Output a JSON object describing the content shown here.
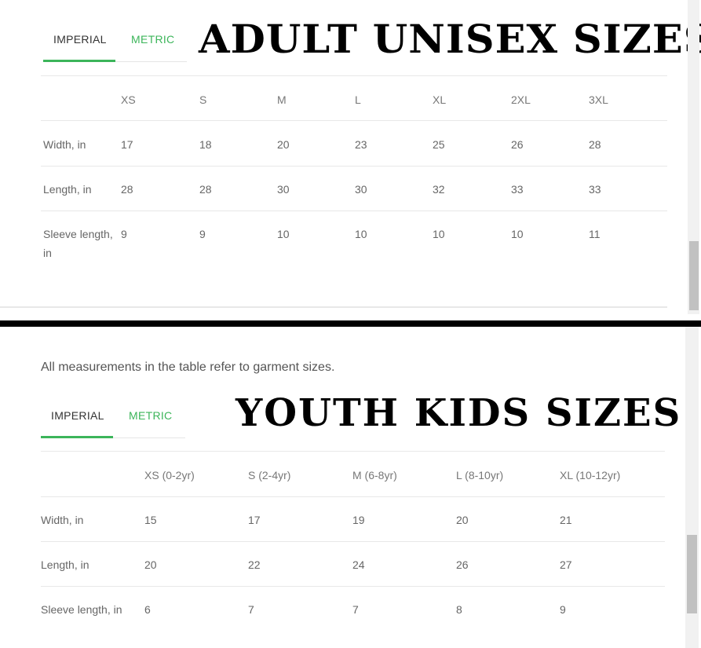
{
  "adult": {
    "tabs": {
      "imperial": "IMPERIAL",
      "metric": "METRIC"
    },
    "title": "ADULT UNISEX SIZES",
    "headers": [
      "XS",
      "S",
      "M",
      "L",
      "XL",
      "2XL",
      "3XL"
    ],
    "rows": [
      {
        "label": "Width, in",
        "values": [
          "17",
          "18",
          "20",
          "23",
          "25",
          "26",
          "28"
        ]
      },
      {
        "label": "Length, in",
        "values": [
          "28",
          "28",
          "30",
          "30",
          "32",
          "33",
          "33"
        ]
      },
      {
        "label": "Sleeve length, in",
        "values": [
          "9",
          "9",
          "10",
          "10",
          "10",
          "10",
          "11"
        ]
      }
    ]
  },
  "youth": {
    "note": "All measurements in the table refer to garment sizes.",
    "tabs": {
      "imperial": "IMPERIAL",
      "metric": "METRIC"
    },
    "title": "YOUTH KIDS SIZES",
    "headers": [
      "XS (0-2yr)",
      "S (2-4yr)",
      "M (6-8yr)",
      "L (8-10yr)",
      "XL (10-12yr)"
    ],
    "rows": [
      {
        "label": "Width, in",
        "values": [
          "15",
          "17",
          "19",
          "20",
          "21"
        ]
      },
      {
        "label": "Length, in",
        "values": [
          "20",
          "22",
          "24",
          "26",
          "27"
        ]
      },
      {
        "label": "Sleeve length, in",
        "values": [
          "6",
          "7",
          "7",
          "8",
          "9"
        ]
      }
    ]
  },
  "colors": {
    "accent": "#3cb55a",
    "divider": "#000000"
  }
}
